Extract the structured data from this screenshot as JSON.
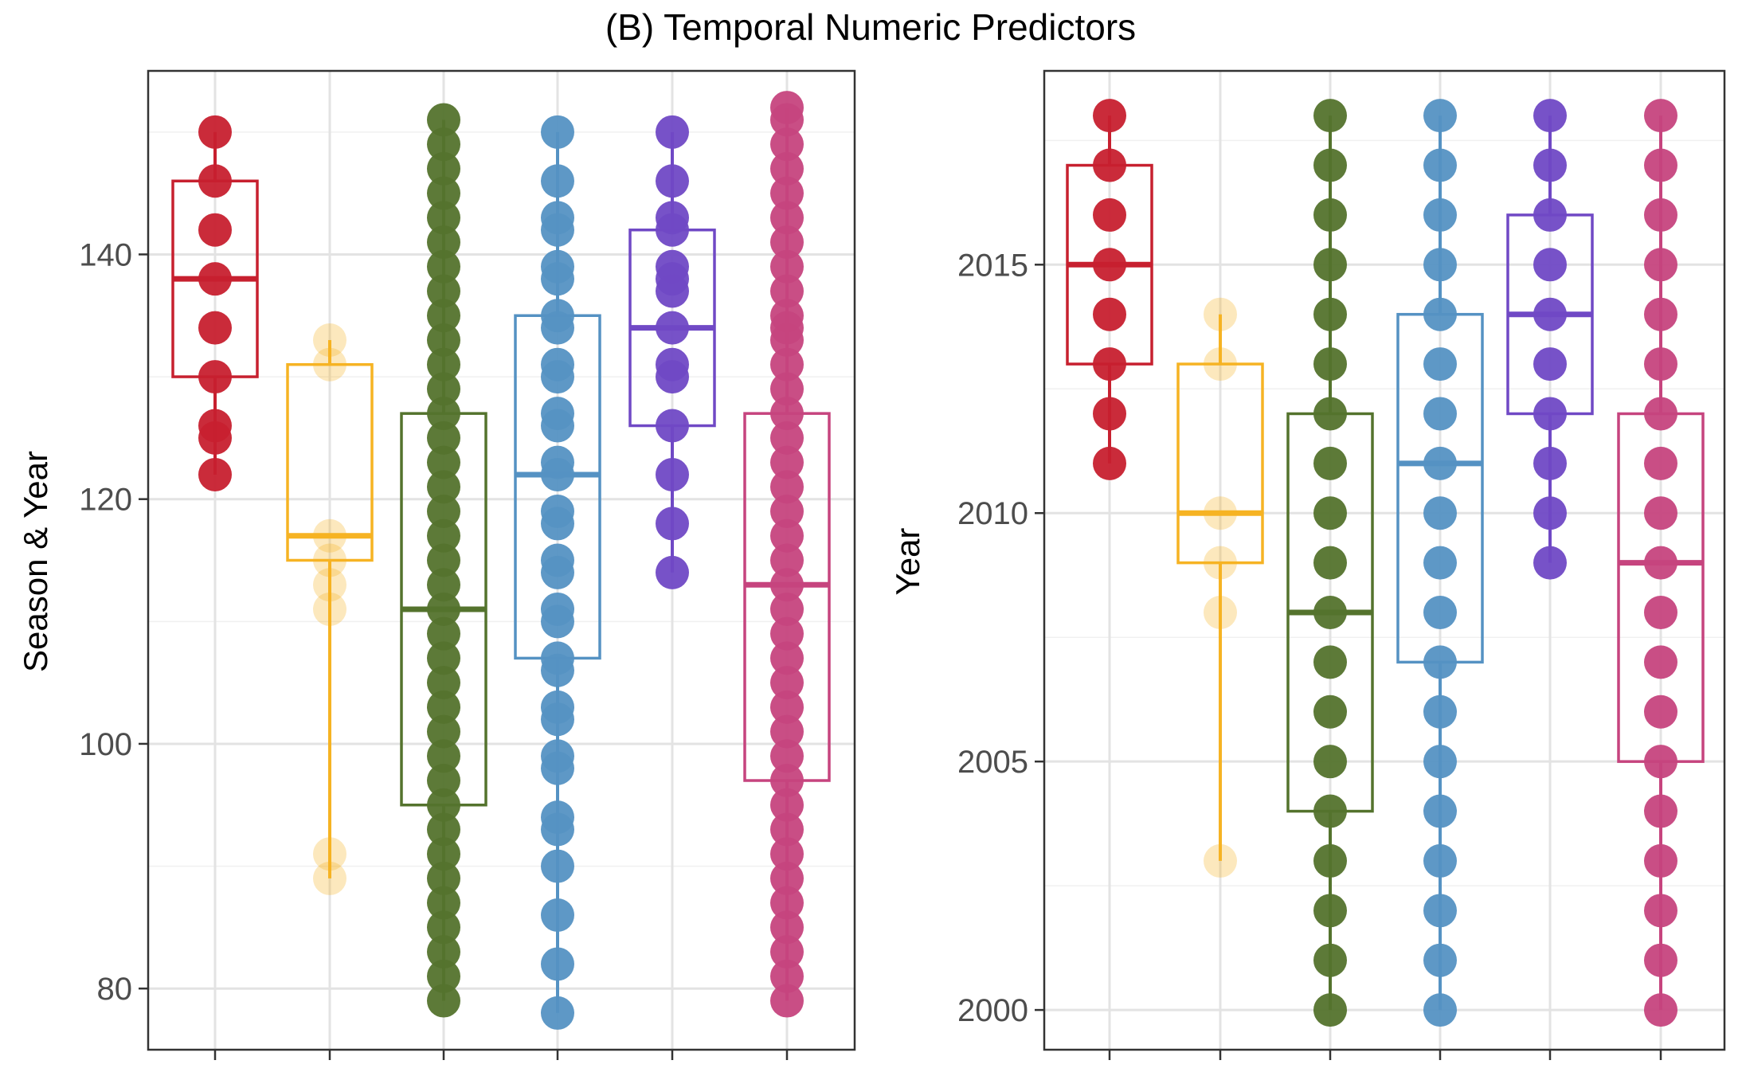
{
  "title": "(B) Temporal Numeric Predictors",
  "chart_data": [
    {
      "type": "boxplot",
      "ylabel": "Season & Year",
      "ylim": [
        75,
        155
      ],
      "yticks": [
        80,
        100,
        120,
        140
      ],
      "grid": true,
      "groups": [
        {
          "color": "#C7202F",
          "box": {
            "q1": 130,
            "median": 138,
            "q3": 146,
            "whisker_low": 122,
            "whisker_high": 150
          },
          "points": [
            150,
            146,
            142,
            138,
            134,
            130,
            126,
            125,
            122
          ]
        },
        {
          "color": "#F6B323",
          "box": {
            "q1": 115,
            "median": 117,
            "q3": 131,
            "whisker_low": 89,
            "whisker_high": 133
          },
          "points": [
            133,
            131,
            117,
            115,
            113,
            111,
            91,
            89
          ]
        },
        {
          "color": "#54732D",
          "box": {
            "q1": 95,
            "median": 111,
            "q3": 127,
            "whisker_low": 79,
            "whisker_high": 151
          },
          "points": [
            151,
            149,
            147,
            145,
            143,
            141,
            139,
            137,
            135,
            133,
            131,
            129,
            127,
            125,
            123,
            121,
            119,
            117,
            115,
            113,
            111,
            109,
            107,
            105,
            103,
            101,
            99,
            97,
            95,
            93,
            91,
            89,
            87,
            85,
            83,
            81,
            79
          ]
        },
        {
          "color": "#5592C3",
          "box": {
            "q1": 107,
            "median": 122,
            "q3": 135,
            "whisker_low": 78,
            "whisker_high": 150
          },
          "points": [
            150,
            146,
            143,
            142,
            139,
            138,
            135,
            134,
            131,
            130,
            127,
            126,
            123,
            122,
            119,
            118,
            115,
            114,
            111,
            110,
            107,
            106,
            103,
            102,
            99,
            98,
            94,
            93,
            90,
            86,
            82,
            78
          ]
        },
        {
          "color": "#7049C5",
          "box": {
            "q1": 126,
            "median": 134,
            "q3": 142,
            "whisker_low": 114,
            "whisker_high": 150
          },
          "points": [
            150,
            146,
            143,
            142,
            139,
            138,
            137,
            134,
            131,
            130,
            126,
            122,
            118,
            114
          ]
        },
        {
          "color": "#C6447E",
          "box": {
            "q1": 97,
            "median": 113,
            "q3": 127,
            "whisker_low": 79,
            "whisker_high": 152
          },
          "points": [
            152,
            151,
            149,
            147,
            145,
            143,
            141,
            139,
            137,
            135,
            134,
            133,
            131,
            129,
            127,
            125,
            123,
            121,
            119,
            117,
            115,
            113,
            111,
            109,
            107,
            105,
            103,
            101,
            99,
            97,
            95,
            93,
            91,
            89,
            87,
            85,
            83,
            81,
            79
          ]
        }
      ]
    },
    {
      "type": "boxplot",
      "ylabel": "Year",
      "ylim": [
        1999.2,
        2018.9
      ],
      "yticks": [
        2000,
        2005,
        2010,
        2015
      ],
      "grid": true,
      "groups": [
        {
          "color": "#C7202F",
          "box": {
            "q1": 2013,
            "median": 2015,
            "q3": 2017,
            "whisker_low": 2011,
            "whisker_high": 2018
          },
          "points": [
            2018,
            2017,
            2016,
            2015,
            2014,
            2013,
            2012,
            2011
          ]
        },
        {
          "color": "#F6B323",
          "box": {
            "q1": 2009,
            "median": 2010,
            "q3": 2013,
            "whisker_low": 2003,
            "whisker_high": 2014
          },
          "points": [
            2014,
            2013,
            2010,
            2009,
            2008,
            2003
          ]
        },
        {
          "color": "#54732D",
          "box": {
            "q1": 2004,
            "median": 2008,
            "q3": 2012,
            "whisker_low": 2000,
            "whisker_high": 2018
          },
          "points": [
            2018,
            2017,
            2016,
            2015,
            2014,
            2013,
            2012,
            2011,
            2010,
            2009,
            2008,
            2007,
            2006,
            2005,
            2004,
            2003,
            2002,
            2001,
            2000
          ]
        },
        {
          "color": "#5592C3",
          "box": {
            "q1": 2007,
            "median": 2011,
            "q3": 2014,
            "whisker_low": 2000,
            "whisker_high": 2018
          },
          "points": [
            2018,
            2017,
            2016,
            2015,
            2014,
            2013,
            2012,
            2011,
            2010,
            2009,
            2008,
            2007,
            2006,
            2005,
            2004,
            2003,
            2002,
            2001,
            2000
          ]
        },
        {
          "color": "#7049C5",
          "box": {
            "q1": 2012,
            "median": 2014,
            "q3": 2016,
            "whisker_low": 2009,
            "whisker_high": 2018
          },
          "points": [
            2018,
            2017,
            2016,
            2015,
            2014,
            2013,
            2012,
            2011,
            2010,
            2009
          ]
        },
        {
          "color": "#C6447E",
          "box": {
            "q1": 2005,
            "median": 2009,
            "q3": 2012,
            "whisker_low": 2000,
            "whisker_high": 2018
          },
          "points": [
            2018,
            2017,
            2016,
            2015,
            2014,
            2013,
            2012,
            2011,
            2010,
            2009,
            2008,
            2007,
            2006,
            2005,
            2004,
            2003,
            2002,
            2001,
            2000
          ]
        }
      ]
    }
  ]
}
